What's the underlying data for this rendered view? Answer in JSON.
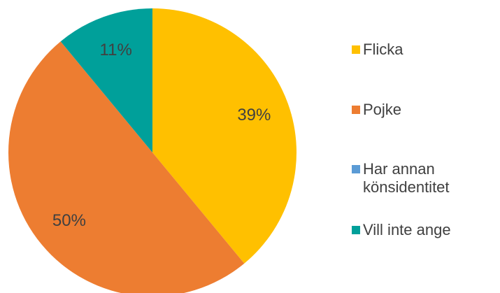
{
  "chart_data": {
    "type": "pie",
    "categories": [
      "Flicka",
      "Pojke",
      "Har annan könsidentitet",
      "Vill inte ange"
    ],
    "values": [
      39,
      50,
      0,
      11
    ],
    "value_labels": [
      "39%",
      "50%",
      null,
      "11%"
    ],
    "colors": [
      "#ffc000",
      "#ed7d31",
      "#5b9bd5",
      "#00a09a"
    ],
    "legend": "right"
  }
}
